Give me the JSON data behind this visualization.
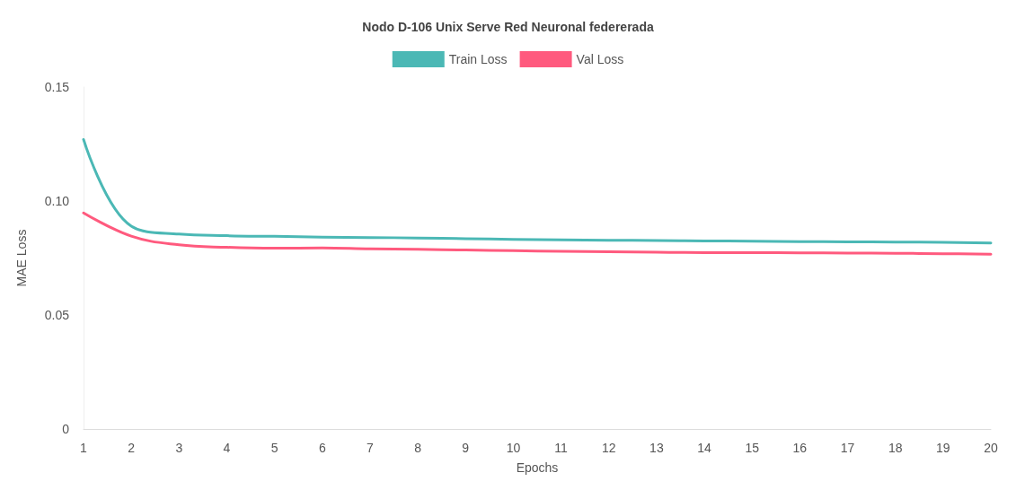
{
  "chart_data": {
    "type": "line",
    "title": "Nodo D-106 Unix Serve Red Neuronal federerada",
    "xlabel": "Epochs",
    "ylabel": "MAE Loss",
    "x": [
      1,
      2,
      3,
      4,
      5,
      6,
      7,
      8,
      9,
      10,
      11,
      12,
      13,
      14,
      15,
      16,
      17,
      18,
      19,
      20
    ],
    "xlim": [
      1,
      20
    ],
    "xticks": [
      1,
      2,
      3,
      4,
      5,
      6,
      7,
      8,
      9,
      10,
      11,
      12,
      13,
      14,
      15,
      16,
      17,
      18,
      19,
      20
    ],
    "series": [
      {
        "name": "Train Loss",
        "color": "#4bb8b5",
        "values": [
          0.127,
          0.089,
          0.0855,
          0.0848,
          0.0845,
          0.0842,
          0.084,
          0.0838,
          0.0835,
          0.0832,
          0.083,
          0.0828,
          0.0827,
          0.0825,
          0.0824,
          0.0822,
          0.0821,
          0.082,
          0.0819,
          0.0816
        ]
      },
      {
        "name": "Val Loss",
        "color": "#ff5a7e",
        "values": [
          0.0948,
          0.0846,
          0.0808,
          0.0797,
          0.0793,
          0.0794,
          0.079,
          0.0788,
          0.0785,
          0.0782,
          0.078,
          0.0778,
          0.0776,
          0.0774,
          0.0774,
          0.0773,
          0.0772,
          0.0771,
          0.0769,
          0.0767
        ]
      }
    ],
    "ylim": [
      0,
      0.15
    ],
    "yticks": [
      0,
      0.05,
      {
        "value": 0.1,
        "label": "0.10"
      },
      0.15
    ],
    "grid": false,
    "legend": "top",
    "marker": "none",
    "line_style": "solid"
  }
}
